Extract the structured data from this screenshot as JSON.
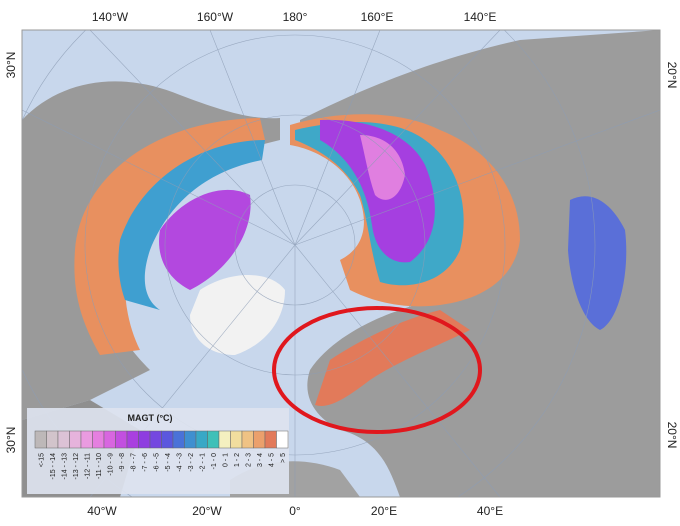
{
  "map": {
    "top_labels": [
      "140°W",
      "160°W",
      "180°",
      "160°E",
      "140°E"
    ],
    "bottom_labels": [
      "40°W",
      "20°W",
      "0°",
      "20°E",
      "40°E"
    ],
    "left_labels": [
      "30°N",
      "30°N"
    ],
    "right_labels": [
      "20°N",
      "20°N"
    ],
    "legend": {
      "title": "MAGT (°C)",
      "items": [
        {
          "label": "<-15",
          "color": "#bdb8b8"
        },
        {
          "label": "-15 - -14",
          "color": "#d2c4cb"
        },
        {
          "label": "-14 - -13",
          "color": "#dcc2d6"
        },
        {
          "label": "-13 - -12",
          "color": "#e6b3dc"
        },
        {
          "label": "-12 - -11",
          "color": "#ea9be0"
        },
        {
          "label": "-11 - -10",
          "color": "#e57fe0"
        },
        {
          "label": "-10 - -9",
          "color": "#d866e0"
        },
        {
          "label": "-9 - -8",
          "color": "#c24fe0"
        },
        {
          "label": "-8 - -7",
          "color": "#a940e0"
        },
        {
          "label": "-7 - -6",
          "color": "#8e3de0"
        },
        {
          "label": "-6 - -5",
          "color": "#7447e0"
        },
        {
          "label": "-5 - -4",
          "color": "#5b57de"
        },
        {
          "label": "-4 - -3",
          "color": "#4a72d8"
        },
        {
          "label": "-3 - -2",
          "color": "#3f8fd0"
        },
        {
          "label": "-2 - -1",
          "color": "#38a8c6"
        },
        {
          "label": "-1 - 0",
          "color": "#3fc0b8"
        },
        {
          "label": "0 - 1",
          "color": "#f4f0c0"
        },
        {
          "label": "1 - 2",
          "color": "#f1dd9e"
        },
        {
          "label": "2 - 3",
          "color": "#efc284"
        },
        {
          "label": "3 - 4",
          "color": "#eba06c"
        },
        {
          "label": "4 - 5",
          "color": "#e27a5a"
        },
        {
          "label": "> 5",
          "color": "#ffffff"
        }
      ]
    }
  }
}
